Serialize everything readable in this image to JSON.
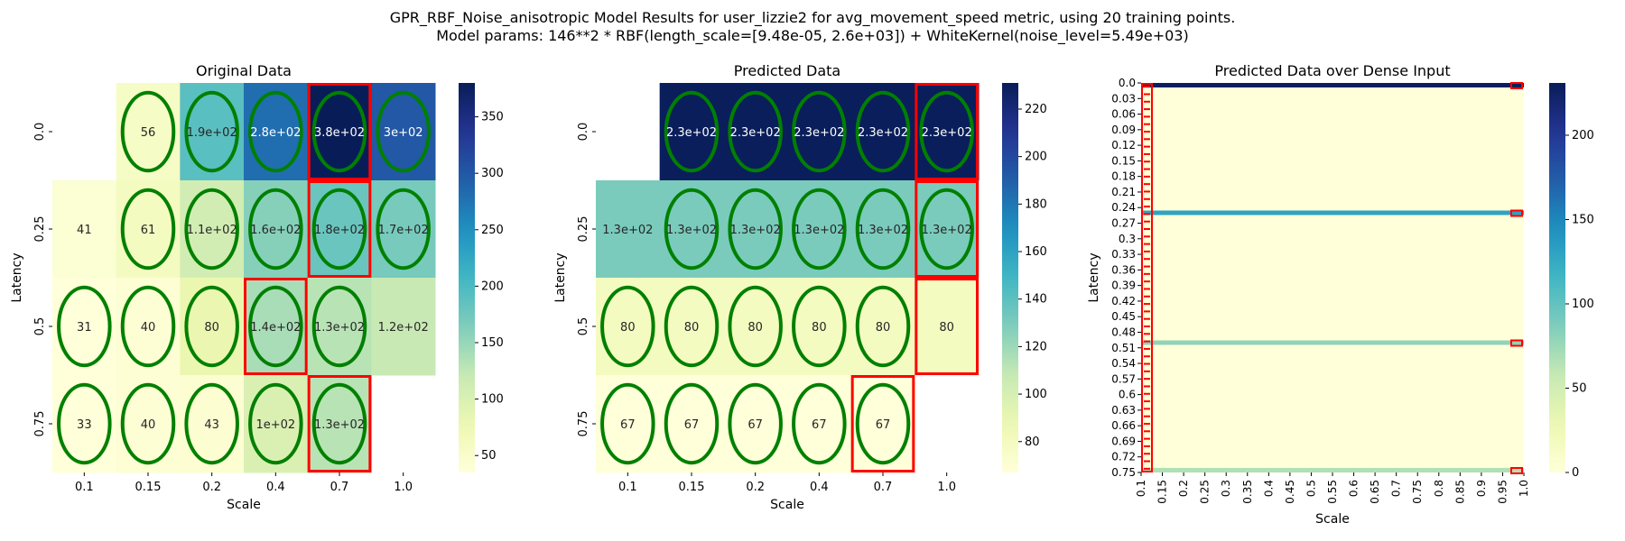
{
  "figure": {
    "title_line1": "GPR_RBF_Noise_anisotropic Model Results for user_lizzie2 for avg_movement_speed metric, using 20 training points.",
    "title_line2": "Model params: 146**2 * RBF(length_scale=[9.48e-05, 2.6e+03]) + WhiteKernel(noise_level=5.49e+03)"
  },
  "colors": {
    "cmap": "YlGnBu",
    "circle": "#008000",
    "box": "#ff0000"
  },
  "chart_data": [
    {
      "type": "heatmap",
      "title": "Original Data",
      "xlabel": "Scale",
      "ylabel": "Latency",
      "x_categories": [
        "0.1",
        "0.15",
        "0.2",
        "0.4",
        "0.7",
        "1.0"
      ],
      "y_categories": [
        "0.0",
        "0.25",
        "0.5",
        "0.75"
      ],
      "values": [
        [
          null,
          56,
          190,
          280,
          380,
          300
        ],
        [
          41,
          61,
          110,
          160,
          180,
          170
        ],
        [
          31,
          40,
          80,
          140,
          130,
          120
        ],
        [
          33,
          40,
          43,
          100,
          130,
          null
        ]
      ],
      "labels": [
        [
          "",
          "56",
          "1.9e+02",
          "2.8e+02",
          "3.8e+02",
          "3e+02"
        ],
        [
          "41",
          "61",
          "1.1e+02",
          "1.6e+02",
          "1.8e+02",
          "1.7e+02"
        ],
        [
          "31",
          "40",
          "80",
          "1.4e+02",
          "1.3e+02",
          "1.2e+02"
        ],
        [
          "33",
          "40",
          "43",
          "1e+02",
          "1.3e+02",
          ""
        ]
      ],
      "circled": [
        [
          false,
          true,
          true,
          true,
          true,
          true
        ],
        [
          false,
          true,
          true,
          true,
          true,
          true
        ],
        [
          true,
          true,
          true,
          true,
          true,
          false
        ],
        [
          true,
          true,
          true,
          true,
          true,
          false
        ]
      ],
      "boxed": [
        [
          0,
          4
        ],
        [
          1,
          4
        ],
        [
          2,
          3
        ],
        [
          3,
          4
        ]
      ],
      "vmin": 35,
      "vmax": 380,
      "colorbar_ticks": [
        50,
        100,
        150,
        200,
        250,
        300,
        350
      ]
    },
    {
      "type": "heatmap",
      "title": "Predicted Data",
      "xlabel": "Scale",
      "ylabel": "Latency",
      "x_categories": [
        "0.1",
        "0.15",
        "0.2",
        "0.4",
        "0.7",
        "1.0"
      ],
      "y_categories": [
        "0.0",
        "0.25",
        "0.5",
        "0.75"
      ],
      "values": [
        [
          null,
          230,
          230,
          230,
          230,
          230
        ],
        [
          130,
          130,
          130,
          130,
          130,
          130
        ],
        [
          80,
          80,
          80,
          80,
          80,
          80
        ],
        [
          67,
          67,
          67,
          67,
          67,
          null
        ]
      ],
      "labels": [
        [
          "",
          "2.3e+02",
          "2.3e+02",
          "2.3e+02",
          "2.3e+02",
          "2.3e+02"
        ],
        [
          "1.3e+02",
          "1.3e+02",
          "1.3e+02",
          "1.3e+02",
          "1.3e+02",
          "1.3e+02"
        ],
        [
          "80",
          "80",
          "80",
          "80",
          "80",
          "80"
        ],
        [
          "67",
          "67",
          "67",
          "67",
          "67",
          ""
        ]
      ],
      "circled": [
        [
          false,
          true,
          true,
          true,
          true,
          true
        ],
        [
          false,
          true,
          true,
          true,
          true,
          true
        ],
        [
          true,
          true,
          true,
          true,
          true,
          false
        ],
        [
          true,
          true,
          true,
          true,
          true,
          false
        ]
      ],
      "boxed": [
        [
          0,
          5
        ],
        [
          1,
          5
        ],
        [
          2,
          5
        ],
        [
          3,
          4
        ]
      ],
      "vmin": 67,
      "vmax": 231,
      "colorbar_ticks": [
        80,
        100,
        120,
        140,
        160,
        180,
        200,
        220
      ]
    },
    {
      "type": "heatmap",
      "title": "Predicted Data over Dense Input",
      "xlabel": "Scale",
      "ylabel": "Latency",
      "x_categories": [
        "0.1",
        "0.15",
        "0.2",
        "0.25",
        "0.3",
        "0.35",
        "0.4",
        "0.45",
        "0.5",
        "0.55",
        "0.6",
        "0.65",
        "0.7",
        "0.75",
        "0.8",
        "0.85",
        "0.9",
        "0.95",
        "1.0"
      ],
      "y_categories": [
        "0.0",
        "0.03",
        "0.06",
        "0.09",
        "0.12",
        "0.15",
        "0.18",
        "0.21",
        "0.24",
        "0.27",
        "0.3",
        "0.33",
        "0.36",
        "0.39",
        "0.42",
        "0.45",
        "0.48",
        "0.51",
        "0.54",
        "0.57",
        "0.6",
        "0.63",
        "0.66",
        "0.69",
        "0.72",
        "0.75"
      ],
      "background_value": 0,
      "bands": [
        {
          "latency": 0.0,
          "value": 230
        },
        {
          "latency": 0.25,
          "value": 130
        },
        {
          "latency": 0.5,
          "value": 80
        },
        {
          "latency": 0.75,
          "value": 67
        }
      ],
      "vmin": 0,
      "vmax": 231,
      "colorbar_ticks": [
        0,
        50,
        100,
        150,
        200
      ]
    }
  ]
}
